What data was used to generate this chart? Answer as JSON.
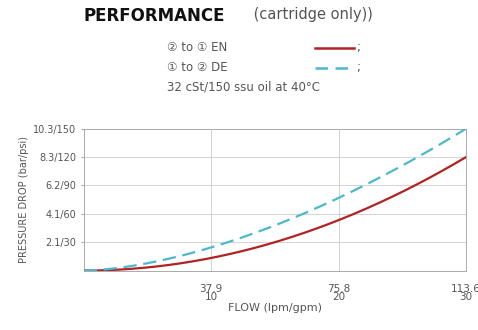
{
  "title_bold": "PERFORMANCE",
  "title_normal": " (cartridge only))",
  "legend_line1_text": "② to ① EN",
  "legend_line2_text": "① to ② DE",
  "legend_note": "32 cSt/150 ssu oil at 40°C",
  "xlabel": "FLOW (lpm/gpm)",
  "ylabel": "PRESSURE DROP (bar/psi)",
  "ytick_labels": [
    "2.1/30",
    "4.1/60",
    "6.2/90",
    "8.3/120",
    "10.3/150"
  ],
  "ytick_vals": [
    30,
    60,
    90,
    120,
    150
  ],
  "xtick_positions": [
    37.9,
    75.8,
    113.6
  ],
  "xtick_top": [
    "37.9",
    "75.8",
    "113.6"
  ],
  "xtick_bot": [
    "10",
    "20",
    "30"
  ],
  "xmin": 0,
  "xmax": 113.6,
  "ymin": 0,
  "ymax": 150,
  "color_en": "#b22222",
  "color_de": "#4db8cc",
  "text_color": "#555555",
  "bg_color": "#ffffff",
  "grid_color": "#cccccc",
  "spine_color": "#aaaaaa"
}
